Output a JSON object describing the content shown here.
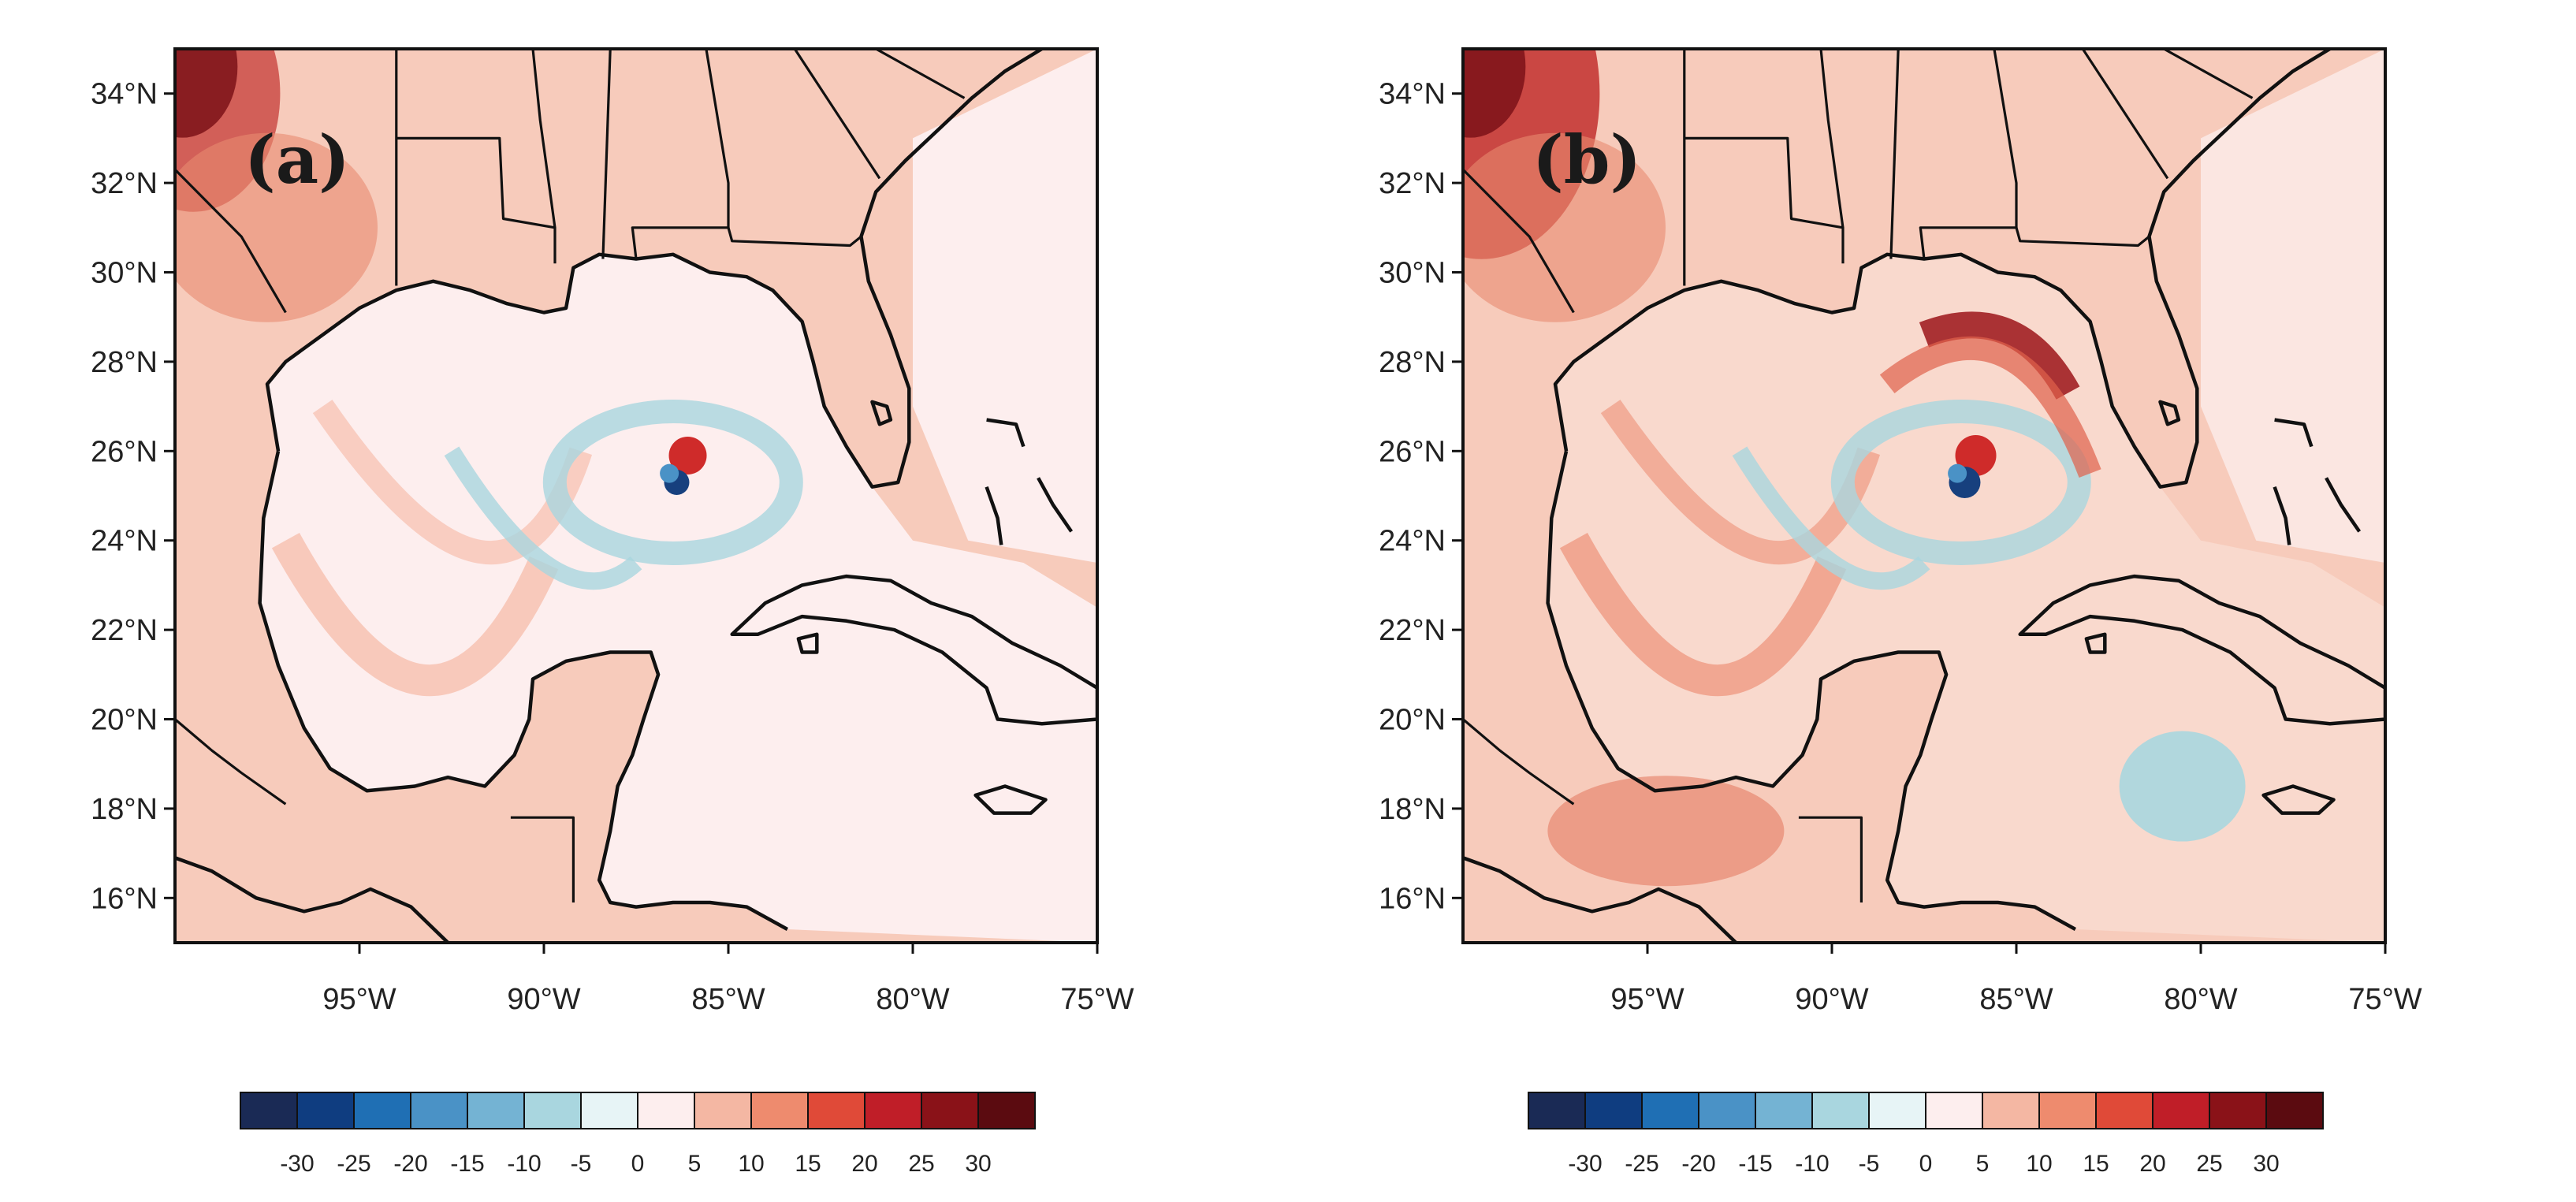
{
  "colors": {
    "background_shade": "#f7cbbb",
    "ocean_shade": "#fdeeee",
    "cool_shade": "#a9d6df",
    "warm_shade": "#ee9f86",
    "hot_shade": "#b92a2a"
  },
  "latitude_ticks": [
    "34°N",
    "32°N",
    "30°N",
    "28°N",
    "26°N",
    "24°N",
    "22°N",
    "20°N",
    "18°N",
    "16°N"
  ],
  "longitude_ticks": [
    "95°W",
    "90°W",
    "85°W",
    "80°W",
    "75°W"
  ],
  "colorbar": {
    "colors": [
      "#1a2a55",
      "#0f3d80",
      "#1f6fb4",
      "#4a92c6",
      "#74b3d3",
      "#a9d6df",
      "#e7f4f6",
      "#fdeeee",
      "#f4b7a3",
      "#ee8b6e",
      "#e04a38",
      "#c01e28",
      "#8a1218",
      "#5b0b10"
    ],
    "labels": [
      "-30",
      "-25",
      "-20",
      "-15",
      "-10",
      "-5",
      "0",
      "5",
      "10",
      "15",
      "20",
      "25",
      "30"
    ]
  },
  "panels": [
    {
      "letter": "(a)"
    },
    {
      "letter": "(b)"
    }
  ]
}
